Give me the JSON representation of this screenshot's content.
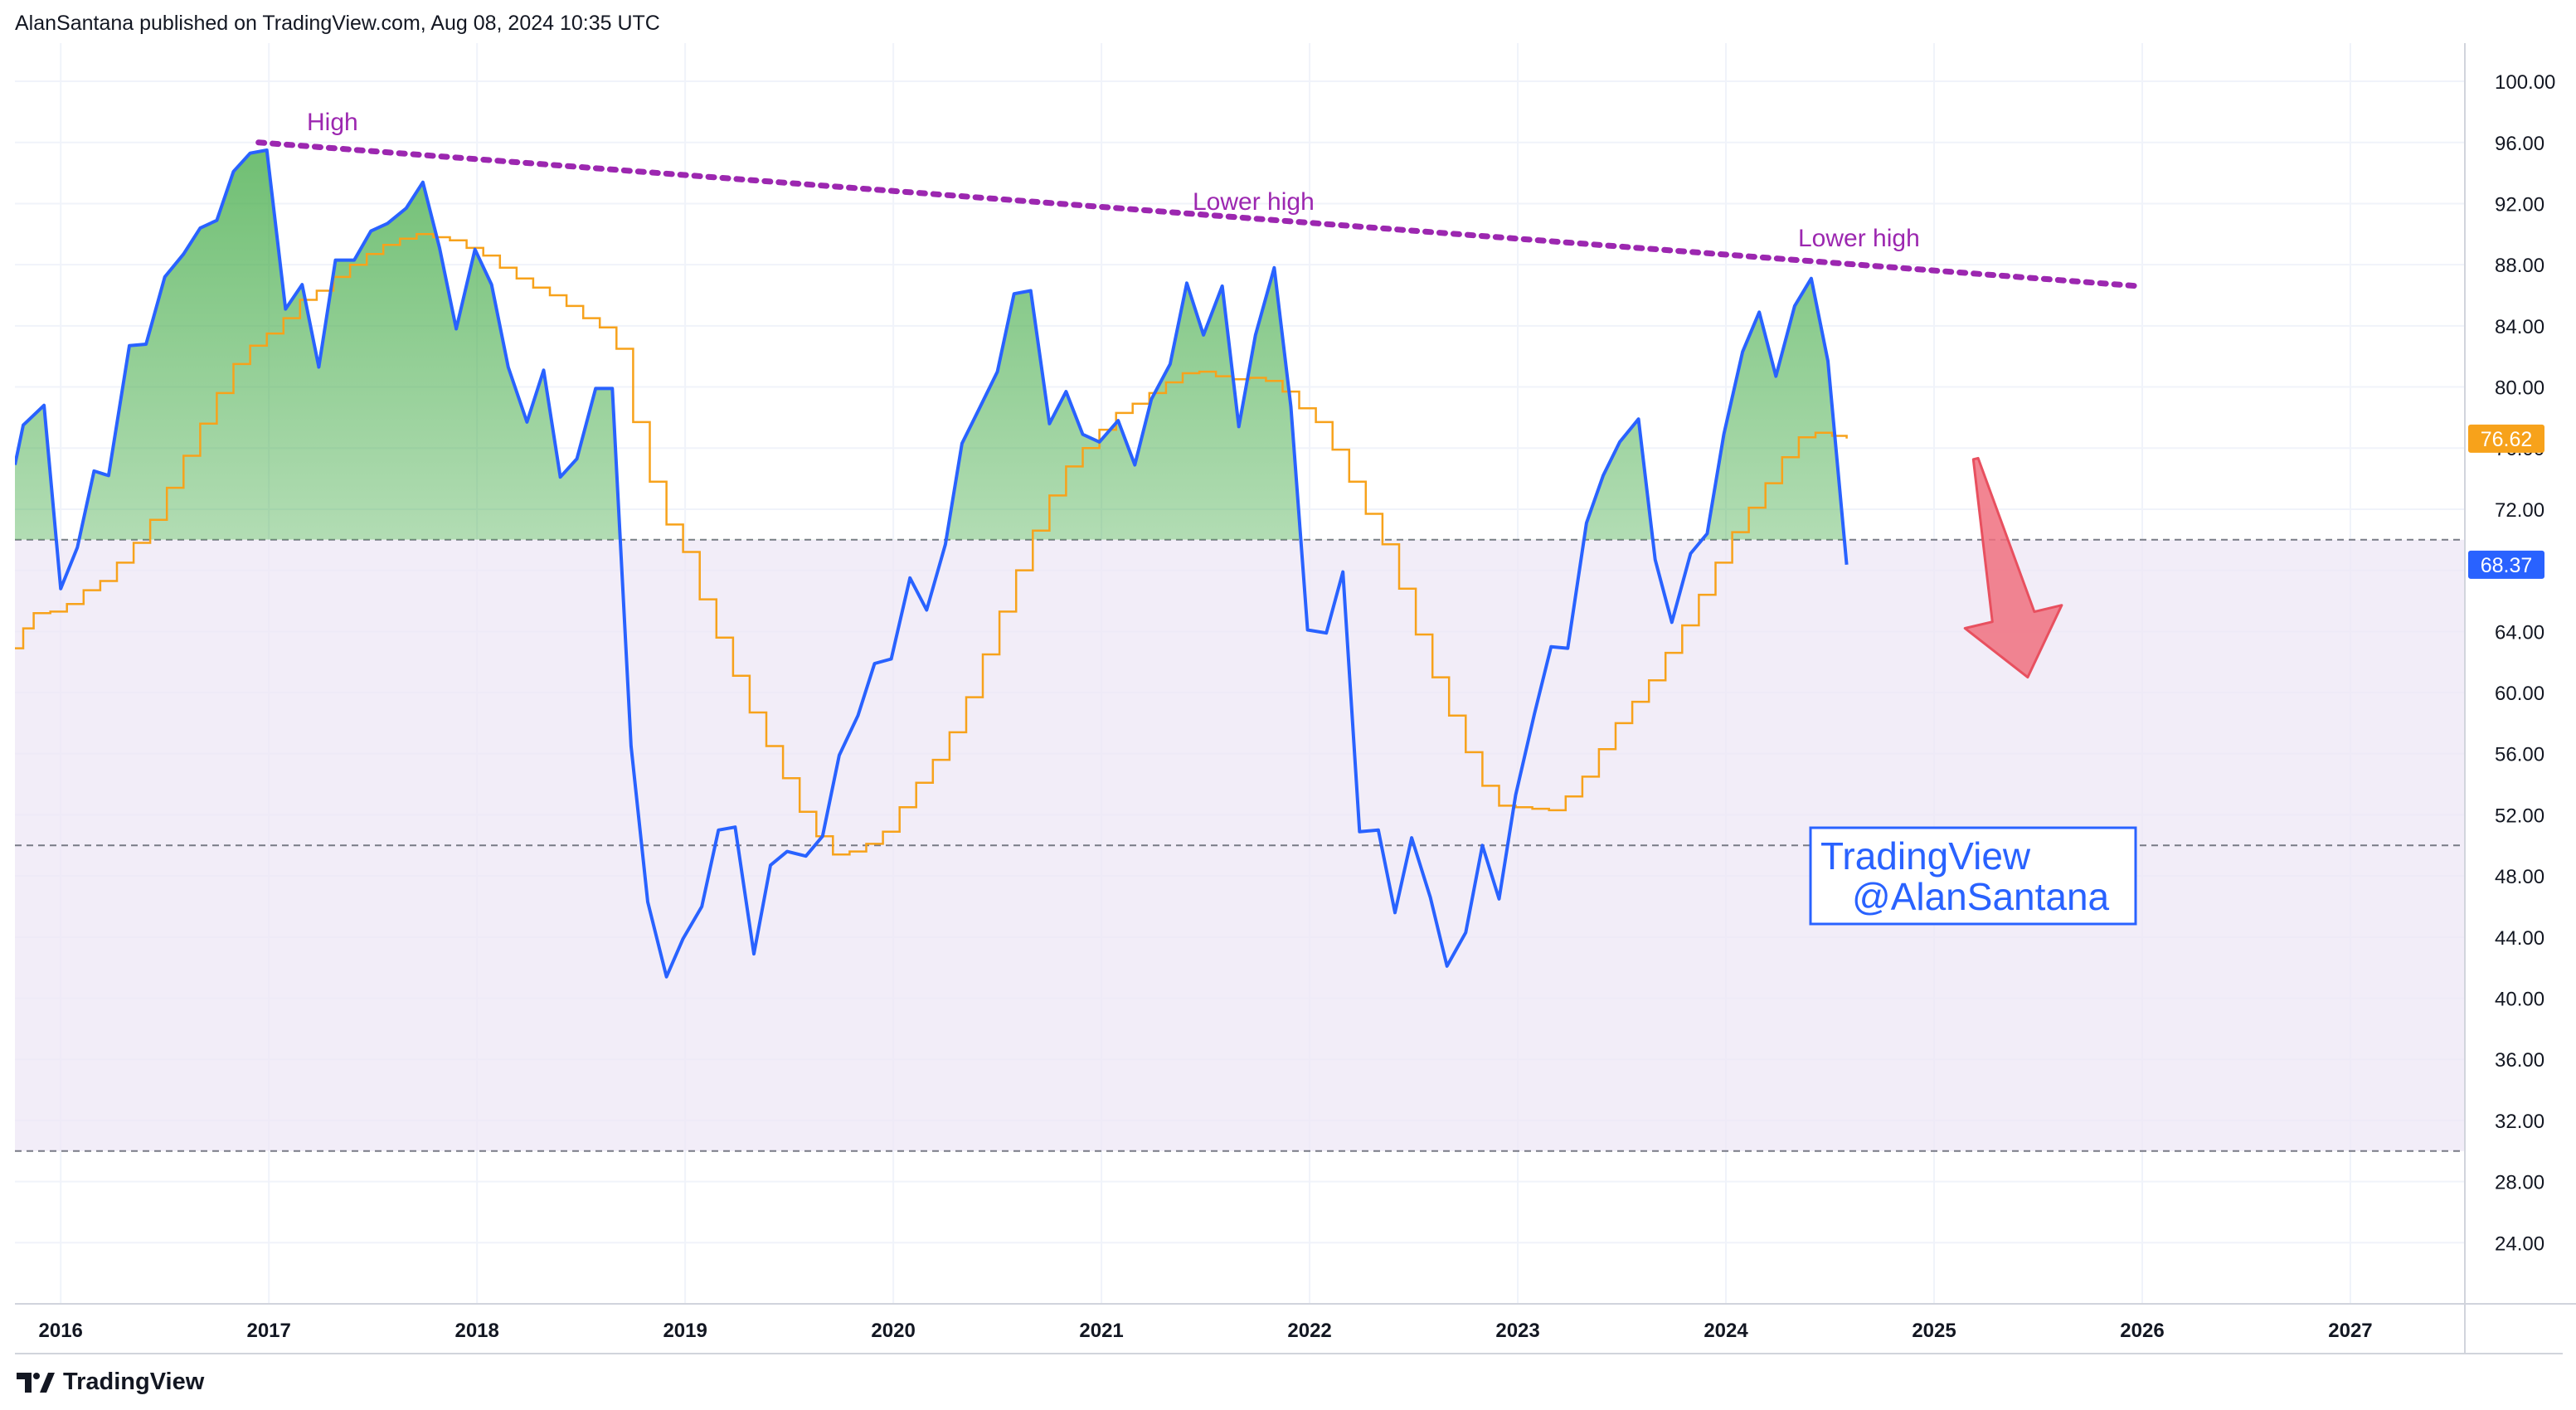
{
  "header": {
    "text": "AlanSantana published on TradingView.com, Aug 08, 2024 10:35 UTC"
  },
  "footer": {
    "brand": "TradingView"
  },
  "colors": {
    "rsi_line": "#2962ff",
    "ma_line": "#f7a21b",
    "band_fill": "#ede7f6",
    "overbought_fill": "#4caf50",
    "trendline": "#9c27b0",
    "arrow": "#f0707f",
    "grid": "#f0f3fa"
  },
  "annotations": {
    "high": "High",
    "lower_high_1": "Lower high",
    "lower_high_2": "Lower high",
    "watermark_line1": "TradingView",
    "watermark_line2": "@AlanSantana"
  },
  "chart_data": {
    "type": "line",
    "x_ticks": [
      "2016",
      "2017",
      "2018",
      "2019",
      "2020",
      "2021",
      "2022",
      "2023",
      "2024",
      "2025",
      "2026",
      "2027"
    ],
    "y_ticks": [
      "100.00",
      "96.00",
      "92.00",
      "88.00",
      "84.00",
      "80.00",
      "76.00",
      "72.00",
      "68.00",
      "64.00",
      "60.00",
      "56.00",
      "52.00",
      "48.00",
      "44.00",
      "40.00",
      "36.00",
      "32.00",
      "28.00",
      "24.00"
    ],
    "ylim": [
      20,
      102.5
    ],
    "xlim": [
      2015.78,
      2027.55
    ],
    "bands": {
      "upper": 70,
      "middle": 50,
      "lower": 30
    },
    "price_labels": [
      {
        "value": "76.62",
        "y": 76.62,
        "color": "#f7a21b"
      },
      {
        "value": "68.37",
        "y": 68.37,
        "color": "#2962ff"
      }
    ],
    "trendline": {
      "start": [
        2016.95,
        96.0
      ],
      "end": [
        2025.98,
        86.6
      ]
    },
    "arrow": {
      "start": [
        2025.2,
        75.3
      ],
      "end": [
        2025.45,
        61.0
      ]
    },
    "series": [
      {
        "type": "line",
        "points": [
          [
            2015.78,
            74.9
          ],
          [
            2015.82,
            77.5
          ],
          [
            2015.92,
            78.8
          ],
          [
            2016.0,
            66.8
          ],
          [
            2016.08,
            69.5
          ],
          [
            2016.16,
            74.5
          ],
          [
            2016.23,
            74.2
          ],
          [
            2016.33,
            82.7
          ],
          [
            2016.41,
            82.8
          ],
          [
            2016.5,
            87.2
          ],
          [
            2016.59,
            88.7
          ],
          [
            2016.67,
            90.4
          ],
          [
            2016.75,
            90.9
          ],
          [
            2016.83,
            94.1
          ],
          [
            2016.91,
            95.3
          ],
          [
            2016.99,
            95.5
          ],
          [
            2017.08,
            85.1
          ],
          [
            2017.16,
            86.7
          ],
          [
            2017.24,
            81.3
          ],
          [
            2017.32,
            88.3
          ],
          [
            2017.41,
            88.3
          ],
          [
            2017.49,
            90.2
          ],
          [
            2017.57,
            90.7
          ],
          [
            2017.66,
            91.7
          ],
          [
            2017.74,
            93.4
          ],
          [
            2017.82,
            89.1
          ],
          [
            2017.9,
            83.8
          ],
          [
            2017.99,
            89.0
          ],
          [
            2018.07,
            86.7
          ],
          [
            2018.15,
            81.3
          ],
          [
            2018.24,
            77.7
          ],
          [
            2018.32,
            81.1
          ],
          [
            2018.4,
            74.1
          ],
          [
            2018.48,
            75.3
          ],
          [
            2018.57,
            79.9
          ],
          [
            2018.65,
            79.9
          ],
          [
            2018.74,
            56.5
          ],
          [
            2018.82,
            46.3
          ],
          [
            2018.91,
            41.4
          ],
          [
            2018.99,
            43.9
          ],
          [
            2019.08,
            46.0
          ],
          [
            2019.16,
            51.0
          ],
          [
            2019.24,
            51.2
          ],
          [
            2019.33,
            42.9
          ],
          [
            2019.41,
            48.7
          ],
          [
            2019.49,
            49.6
          ],
          [
            2019.58,
            49.3
          ],
          [
            2019.66,
            50.6
          ],
          [
            2019.74,
            55.9
          ],
          [
            2019.83,
            58.5
          ],
          [
            2019.91,
            61.9
          ],
          [
            2019.99,
            62.2
          ],
          [
            2020.08,
            67.5
          ],
          [
            2020.16,
            65.4
          ],
          [
            2020.25,
            69.7
          ],
          [
            2020.33,
            76.3
          ],
          [
            2020.41,
            78.5
          ],
          [
            2020.5,
            81.0
          ],
          [
            2020.58,
            86.1
          ],
          [
            2020.66,
            86.3
          ],
          [
            2020.75,
            77.6
          ],
          [
            2020.83,
            79.7
          ],
          [
            2020.91,
            76.9
          ],
          [
            2020.99,
            76.4
          ],
          [
            2021.08,
            77.8
          ],
          [
            2021.16,
            74.9
          ],
          [
            2021.24,
            79.2
          ],
          [
            2021.33,
            81.5
          ],
          [
            2021.41,
            86.8
          ],
          [
            2021.49,
            83.4
          ],
          [
            2021.58,
            86.6
          ],
          [
            2021.66,
            77.4
          ],
          [
            2021.74,
            83.4
          ],
          [
            2021.83,
            87.8
          ],
          [
            2021.91,
            78.7
          ],
          [
            2021.99,
            64.1
          ],
          [
            2022.08,
            63.9
          ],
          [
            2022.16,
            67.9
          ],
          [
            2022.24,
            50.9
          ],
          [
            2022.33,
            51.0
          ],
          [
            2022.41,
            45.6
          ],
          [
            2022.49,
            50.5
          ],
          [
            2022.58,
            46.6
          ],
          [
            2022.66,
            42.1
          ],
          [
            2022.75,
            44.3
          ],
          [
            2022.83,
            50.0
          ],
          [
            2022.91,
            46.5
          ],
          [
            2022.99,
            53.3
          ],
          [
            2023.08,
            58.6
          ],
          [
            2023.16,
            63.0
          ],
          [
            2023.24,
            62.9
          ],
          [
            2023.33,
            71.1
          ],
          [
            2023.41,
            74.2
          ],
          [
            2023.49,
            76.4
          ],
          [
            2023.58,
            77.9
          ],
          [
            2023.66,
            68.7
          ],
          [
            2023.74,
            64.6
          ],
          [
            2023.83,
            69.1
          ],
          [
            2023.91,
            70.4
          ],
          [
            2023.99,
            76.9
          ],
          [
            2024.08,
            82.3
          ],
          [
            2024.16,
            84.9
          ],
          [
            2024.24,
            80.7
          ],
          [
            2024.33,
            85.3
          ],
          [
            2024.41,
            87.1
          ],
          [
            2024.49,
            81.7
          ],
          [
            2024.58,
            68.37
          ]
        ]
      },
      {
        "type": "step",
        "points": [
          [
            2015.78,
            62.9
          ],
          [
            2015.82,
            64.2
          ],
          [
            2015.87,
            65.2
          ],
          [
            2015.95,
            65.3
          ],
          [
            2016.03,
            65.8
          ],
          [
            2016.11,
            66.7
          ],
          [
            2016.19,
            67.3
          ],
          [
            2016.27,
            68.5
          ],
          [
            2016.35,
            69.8
          ],
          [
            2016.43,
            71.3
          ],
          [
            2016.51,
            73.4
          ],
          [
            2016.59,
            75.5
          ],
          [
            2016.67,
            77.6
          ],
          [
            2016.75,
            79.6
          ],
          [
            2016.83,
            81.5
          ],
          [
            2016.91,
            82.7
          ],
          [
            2016.99,
            83.5
          ],
          [
            2017.07,
            84.5
          ],
          [
            2017.15,
            85.7
          ],
          [
            2017.23,
            86.3
          ],
          [
            2017.31,
            87.2
          ],
          [
            2017.39,
            88.0
          ],
          [
            2017.47,
            88.7
          ],
          [
            2017.55,
            89.3
          ],
          [
            2017.63,
            89.7
          ],
          [
            2017.71,
            90.0
          ],
          [
            2017.79,
            89.8
          ],
          [
            2017.87,
            89.6
          ],
          [
            2017.95,
            89.1
          ],
          [
            2018.03,
            88.6
          ],
          [
            2018.11,
            87.8
          ],
          [
            2018.19,
            87.1
          ],
          [
            2018.27,
            86.5
          ],
          [
            2018.35,
            86.0
          ],
          [
            2018.43,
            85.3
          ],
          [
            2018.51,
            84.5
          ],
          [
            2018.59,
            83.9
          ],
          [
            2018.67,
            82.5
          ],
          [
            2018.75,
            77.7
          ],
          [
            2018.83,
            73.8
          ],
          [
            2018.91,
            71.0
          ],
          [
            2018.99,
            69.2
          ],
          [
            2019.07,
            66.1
          ],
          [
            2019.15,
            63.6
          ],
          [
            2019.23,
            61.1
          ],
          [
            2019.31,
            58.7
          ],
          [
            2019.39,
            56.5
          ],
          [
            2019.47,
            54.4
          ],
          [
            2019.55,
            52.2
          ],
          [
            2019.63,
            50.6
          ],
          [
            2019.71,
            49.4
          ],
          [
            2019.79,
            49.6
          ],
          [
            2019.87,
            50.1
          ],
          [
            2019.95,
            50.9
          ],
          [
            2020.03,
            52.5
          ],
          [
            2020.11,
            54.1
          ],
          [
            2020.19,
            55.6
          ],
          [
            2020.27,
            57.4
          ],
          [
            2020.35,
            59.7
          ],
          [
            2020.43,
            62.5
          ],
          [
            2020.51,
            65.3
          ],
          [
            2020.59,
            68.0
          ],
          [
            2020.67,
            70.6
          ],
          [
            2020.75,
            72.9
          ],
          [
            2020.83,
            74.8
          ],
          [
            2020.91,
            76.0
          ],
          [
            2020.99,
            77.2
          ],
          [
            2021.07,
            78.3
          ],
          [
            2021.15,
            78.9
          ],
          [
            2021.23,
            79.6
          ],
          [
            2021.31,
            80.3
          ],
          [
            2021.39,
            80.9
          ],
          [
            2021.47,
            81.0
          ],
          [
            2021.55,
            80.7
          ],
          [
            2021.63,
            80.5
          ],
          [
            2021.71,
            80.6
          ],
          [
            2021.79,
            80.4
          ],
          [
            2021.87,
            79.7
          ],
          [
            2021.95,
            78.6
          ],
          [
            2022.03,
            77.7
          ],
          [
            2022.11,
            75.9
          ],
          [
            2022.19,
            73.8
          ],
          [
            2022.27,
            71.7
          ],
          [
            2022.35,
            69.7
          ],
          [
            2022.43,
            66.8
          ],
          [
            2022.51,
            63.8
          ],
          [
            2022.59,
            61.0
          ],
          [
            2022.67,
            58.5
          ],
          [
            2022.75,
            56.1
          ],
          [
            2022.83,
            53.9
          ],
          [
            2022.91,
            52.6
          ],
          [
            2022.99,
            52.5
          ],
          [
            2023.07,
            52.4
          ],
          [
            2023.15,
            52.3
          ],
          [
            2023.23,
            53.2
          ],
          [
            2023.31,
            54.5
          ],
          [
            2023.39,
            56.3
          ],
          [
            2023.47,
            58.0
          ],
          [
            2023.55,
            59.4
          ],
          [
            2023.63,
            60.8
          ],
          [
            2023.71,
            62.6
          ],
          [
            2023.79,
            64.4
          ],
          [
            2023.87,
            66.4
          ],
          [
            2023.95,
            68.5
          ],
          [
            2024.03,
            70.5
          ],
          [
            2024.11,
            72.1
          ],
          [
            2024.19,
            73.7
          ],
          [
            2024.27,
            75.4
          ],
          [
            2024.35,
            76.7
          ],
          [
            2024.43,
            77.0
          ],
          [
            2024.51,
            76.8
          ],
          [
            2024.58,
            76.62
          ]
        ]
      }
    ]
  }
}
